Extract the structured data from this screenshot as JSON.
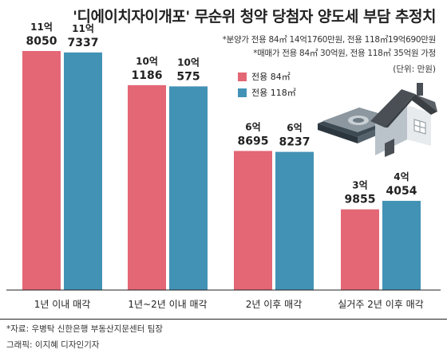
{
  "title": "'디에이치자이개포' 무순위 청약 당첨자 양도세 부담 추정치",
  "notes": [
    "*분양가 전용 84㎡ 14억1760만원, 전용 118㎡19억690만원",
    "*매매가 전용 84㎡ 30억원, 전용 118㎡ 35억원 가정"
  ],
  "unit_label": "(단위: 만원)",
  "source": "*자료: 우병탁 신한은행 부동산지문센터 팀장",
  "credit": "그래픽: 이지혜 디자인기자",
  "colors": {
    "series84": "#e36775",
    "series118": "#4292b5"
  },
  "chart_data": {
    "type": "bar",
    "categories": [
      "1년 이내 매각",
      "1년~2년 이내 매각",
      "2년 이후 매각",
      "실거주 2년 이후 매각"
    ],
    "series": [
      {
        "name": "전용 84㎡",
        "values": [
          118050,
          101186,
          68695,
          39855
        ],
        "label_top": [
          "11억",
          "10억",
          "6억",
          "3억"
        ],
        "label_bottom": [
          "8050",
          "1186",
          "8695",
          "9855"
        ]
      },
      {
        "name": "전용 118㎡",
        "values": [
          117337,
          100575,
          68237,
          44054
        ],
        "label_top": [
          "11억",
          "10억",
          "6억",
          "4억"
        ],
        "label_bottom": [
          "7337",
          "575",
          "8237",
          "4054"
        ]
      }
    ],
    "unit": "만원"
  }
}
